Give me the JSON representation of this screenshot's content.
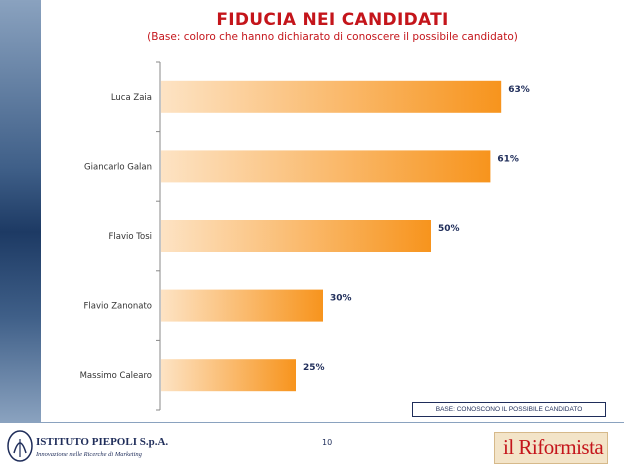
{
  "title": "FIDUCIA NEI CANDIDATI",
  "subtitle": "(Base: coloro che hanno dichiarato di conoscere il possibile candidato)",
  "base_note": "BASE: CONOSCONO IL POSSIBILE CANDIDATO",
  "page_number": "10",
  "logo_left": {
    "name": "ISTITUTO PIEPOLI S.p.A.",
    "tagline": "Innovazione nelle Ricerche di Marketing"
  },
  "logo_right": {
    "name": "il Riformista"
  },
  "colors": {
    "title": "#c4151b",
    "bar_start": "#fde3c4",
    "bar_end": "#f7941d",
    "value_label": "#1f2d5a"
  },
  "chart_data": {
    "type": "bar",
    "orientation": "horizontal",
    "categories": [
      "Luca Zaia",
      "Giancarlo Galan",
      "Flavio Tosi",
      "Flavio Zanonato",
      "Massimo Calearo"
    ],
    "values": [
      63,
      61,
      50,
      30,
      25
    ],
    "value_labels": [
      "63%",
      "61%",
      "50%",
      "30%",
      "25%"
    ],
    "unit": "%",
    "xlim": [
      0,
      100
    ],
    "grid": false,
    "legend": "none"
  }
}
